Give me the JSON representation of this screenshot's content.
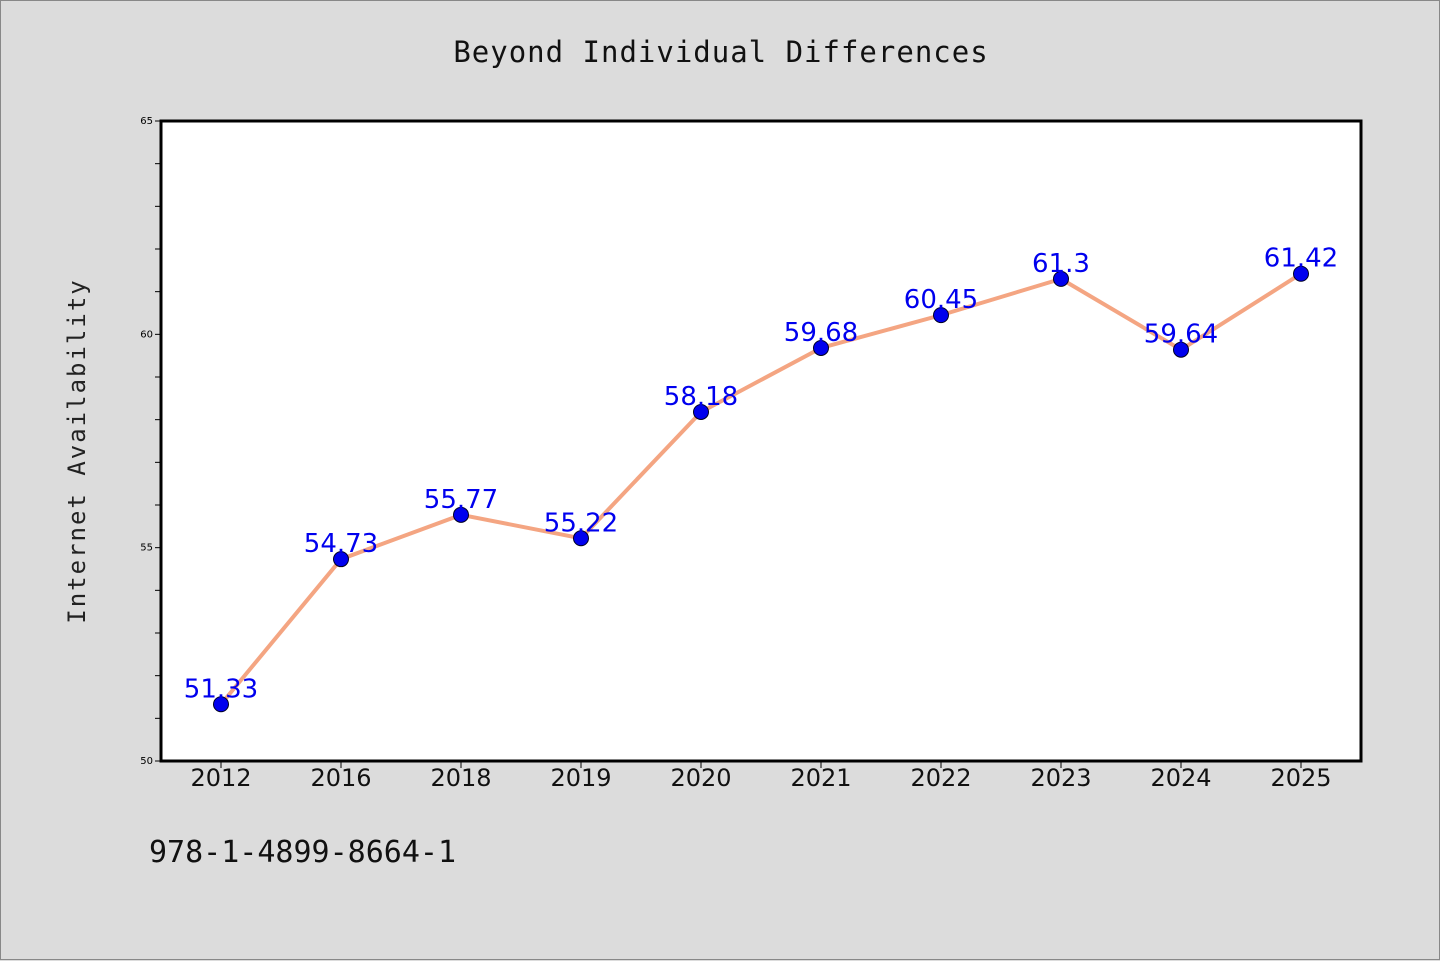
{
  "chart_data": {
    "type": "line",
    "title": "Beyond Individual Differences",
    "xlabel": "",
    "ylabel": "Internet Availability",
    "categories": [
      "2012",
      "2016",
      "2018",
      "2019",
      "2020",
      "2021",
      "2022",
      "2023",
      "2024",
      "2025"
    ],
    "series": [
      {
        "values": [
          51.33,
          54.73,
          55.77,
          55.22,
          58.18,
          59.68,
          60.45,
          61.3,
          59.64,
          61.42
        ],
        "data_labels": [
          "51.33",
          "54.73",
          "55.77",
          "55.22",
          "58.18",
          "59.68",
          "60.45",
          "61.3",
          "59.64",
          "61.42"
        ],
        "line_color": "#f4a582",
        "marker_color": "#0000ee"
      }
    ],
    "ylim": [
      50,
      65
    ],
    "yticks": [
      "50",
      "55",
      "60",
      "65"
    ],
    "grid": false,
    "legend": "none",
    "label_color": "#0000ee"
  },
  "footer": {
    "isbn": "978-1-4899-8664-1"
  }
}
